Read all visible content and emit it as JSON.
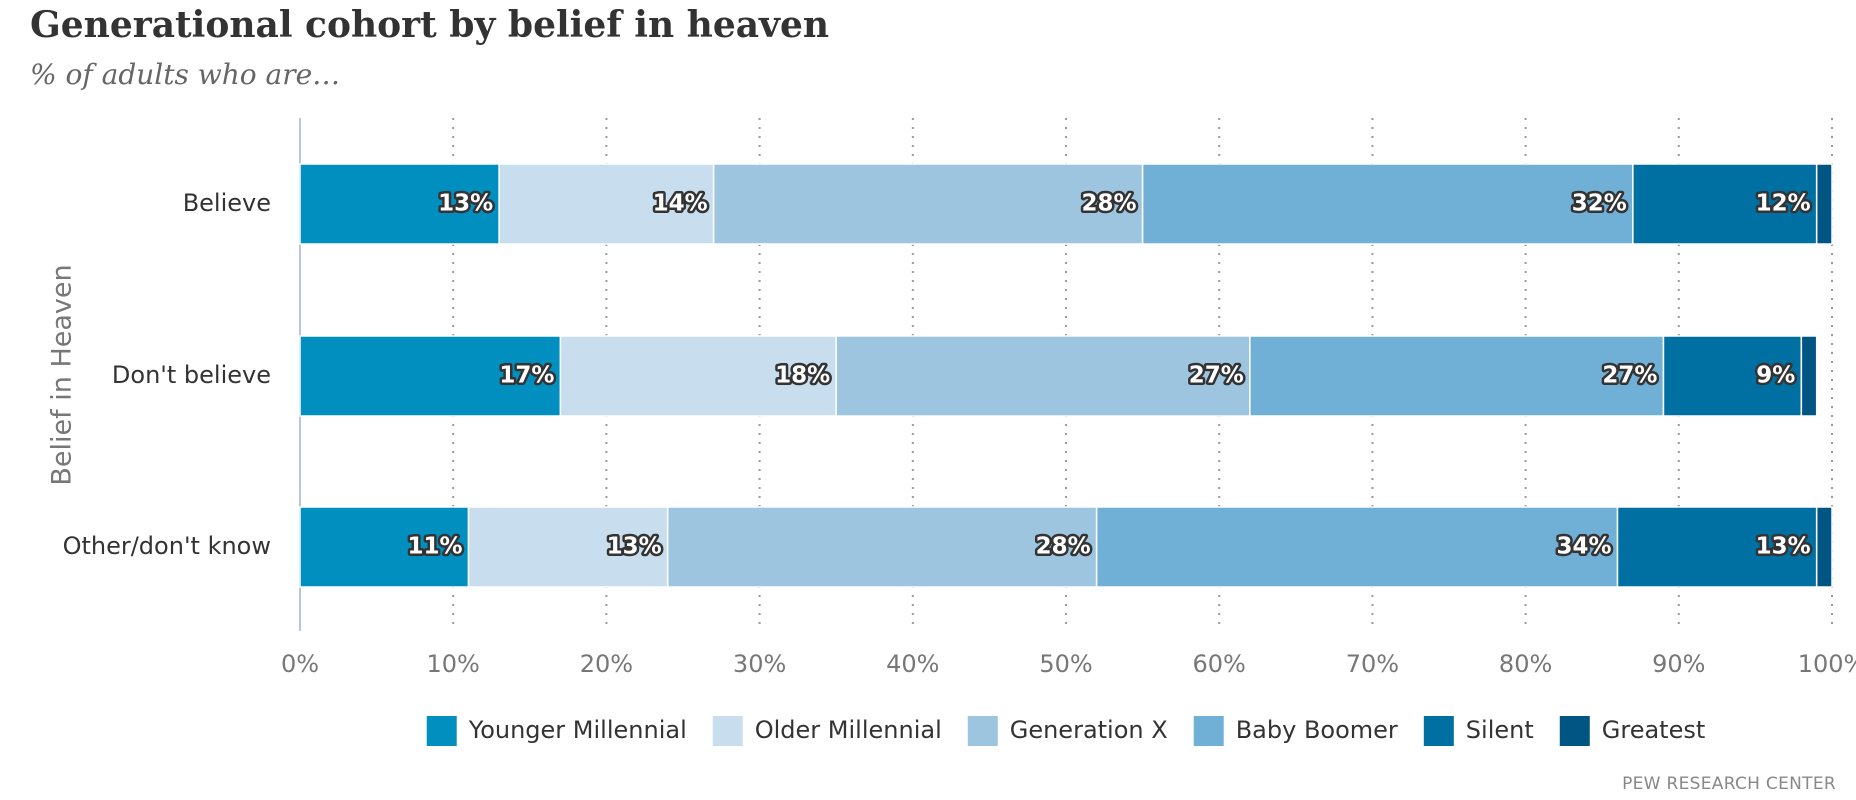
{
  "header": {
    "title": "Generational cohort by belief in heaven",
    "subtitle": "% of adults who are…",
    "source": "PEW RESEARCH CENTER"
  },
  "chart_data": {
    "type": "bar",
    "orientation": "horizontal",
    "stacked": true,
    "title": "Generational cohort by belief in heaven",
    "subtitle": "% of adults who are…",
    "ylabel": "Belief in Heaven",
    "xlabel": "",
    "xlim": [
      0,
      100
    ],
    "x_ticks": [
      0,
      10,
      20,
      30,
      40,
      50,
      60,
      70,
      80,
      90,
      100
    ],
    "x_tick_labels": [
      "0%",
      "10%",
      "20%",
      "30%",
      "40%",
      "50%",
      "60%",
      "70%",
      "80%",
      "90%",
      "100%"
    ],
    "grid": "vertical-dotted",
    "legend_position": "bottom",
    "categories": [
      "Believe",
      "Don't believe",
      "Other/don't know"
    ],
    "series": [
      {
        "name": "Younger Millennial",
        "color": "#008fbf",
        "values": [
          13,
          17,
          11
        ],
        "labels": [
          "13%",
          "17%",
          "11%"
        ]
      },
      {
        "name": "Older Millennial",
        "color": "#c8deee",
        "values": [
          14,
          18,
          13
        ],
        "labels": [
          "14%",
          "18%",
          "13%"
        ]
      },
      {
        "name": "Generation X",
        "color": "#9dc5e0",
        "values": [
          28,
          27,
          28
        ],
        "labels": [
          "28%",
          "27%",
          "28%"
        ]
      },
      {
        "name": "Baby Boomer",
        "color": "#70b0d6",
        "values": [
          32,
          27,
          34
        ],
        "labels": [
          "32%",
          "27%",
          "34%"
        ]
      },
      {
        "name": "Silent",
        "color": "#006fa1",
        "values": [
          12,
          9,
          13
        ],
        "labels": [
          "12%",
          "9%",
          "13%"
        ]
      },
      {
        "name": "Greatest",
        "color": "#005582",
        "values": [
          1,
          1,
          1
        ],
        "labels": [
          "",
          "",
          ""
        ]
      }
    ]
  }
}
